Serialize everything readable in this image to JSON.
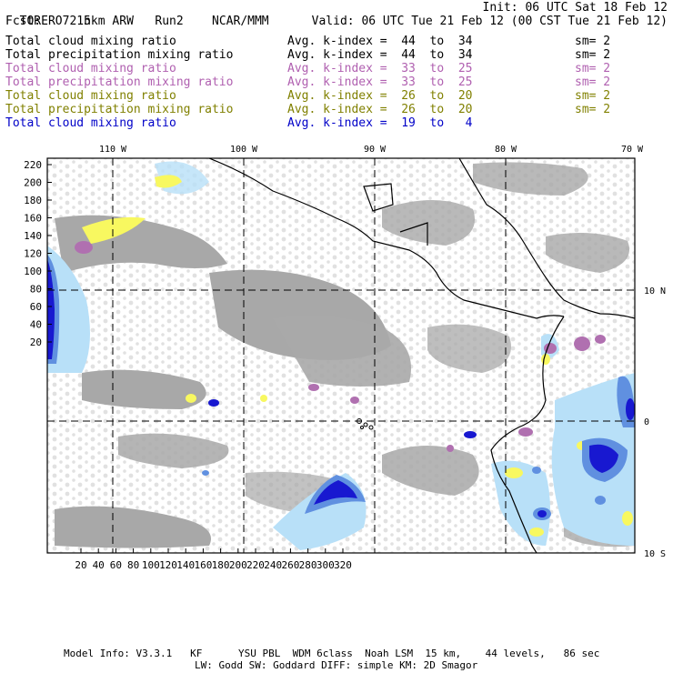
{
  "header": {
    "model": "TORERO",
    "resolution": "15km ARW",
    "run": "Run2",
    "org": "NCAR/MMM",
    "init": "Init: 06 UTC Sat 18 Feb 12",
    "fcst": "Fcst:",
    "fcst_hours": "72 h",
    "valid": "Valid: 06 UTC Tue 21 Feb 12 (00 CST Tue 21 Feb 12)"
  },
  "legend": [
    {
      "name": "Total cloud mixing ratio",
      "k": "Avg. k-index =  44  to  34",
      "sm": "sm= 2",
      "color": "#000000"
    },
    {
      "name": "Total precipitation mixing ratio",
      "k": "Avg. k-index =  44  to  34",
      "sm": "sm= 2",
      "color": "#000000"
    },
    {
      "name": "Total cloud mixing ratio",
      "k": "Avg. k-index =  33  to  25",
      "sm": "sm= 2",
      "color": "#b060b0"
    },
    {
      "name": "Total precipitation mixing ratio",
      "k": "Avg. k-index =  33  to  25",
      "sm": "sm= 2",
      "color": "#b060b0"
    },
    {
      "name": "Total cloud mixing ratio",
      "k": "Avg. k-index =  26  to  20",
      "sm": "sm= 2",
      "color": "#808000"
    },
    {
      "name": "Total precipitation mixing ratio",
      "k": "Avg. k-index =  26  to  20",
      "sm": "sm= 2",
      "color": "#808000"
    },
    {
      "name": "Total cloud mixing ratio",
      "k": "Avg. k-index =  19  to   4",
      "sm": "",
      "color": "#0000c8"
    }
  ],
  "map": {
    "lon_labels": [
      "110 W",
      "100 W",
      "90 W",
      "80 W",
      "70 W"
    ],
    "lat_labels": [
      "10 N",
      "0",
      "10 S"
    ],
    "y_ticks": [
      "220",
      "200",
      "180",
      "160",
      "140",
      "120",
      "100",
      "80",
      "60",
      "40",
      "20"
    ],
    "x_ticks": [
      "20",
      "40",
      "60",
      "80",
      "100",
      "120",
      "140",
      "160",
      "180",
      "200",
      "220",
      "240",
      "260",
      "280",
      "300",
      "320"
    ],
    "colors": {
      "cloud_gray": "#a8a8a8",
      "purple": "#b070b0",
      "yellow": "#f8f860",
      "light_blue": "#b8e0f8",
      "mid_blue": "#6090e0",
      "dark_blue": "#1818d0"
    }
  },
  "footer": {
    "line1": "Model Info: V3.3.1   KF      YSU PBL  WDM 6class  Noah LSM  15 km,    44 levels,   86 sec",
    "line2": "LW: Godd SW: Goddard DIFF: simple KM: 2D Smagor"
  }
}
